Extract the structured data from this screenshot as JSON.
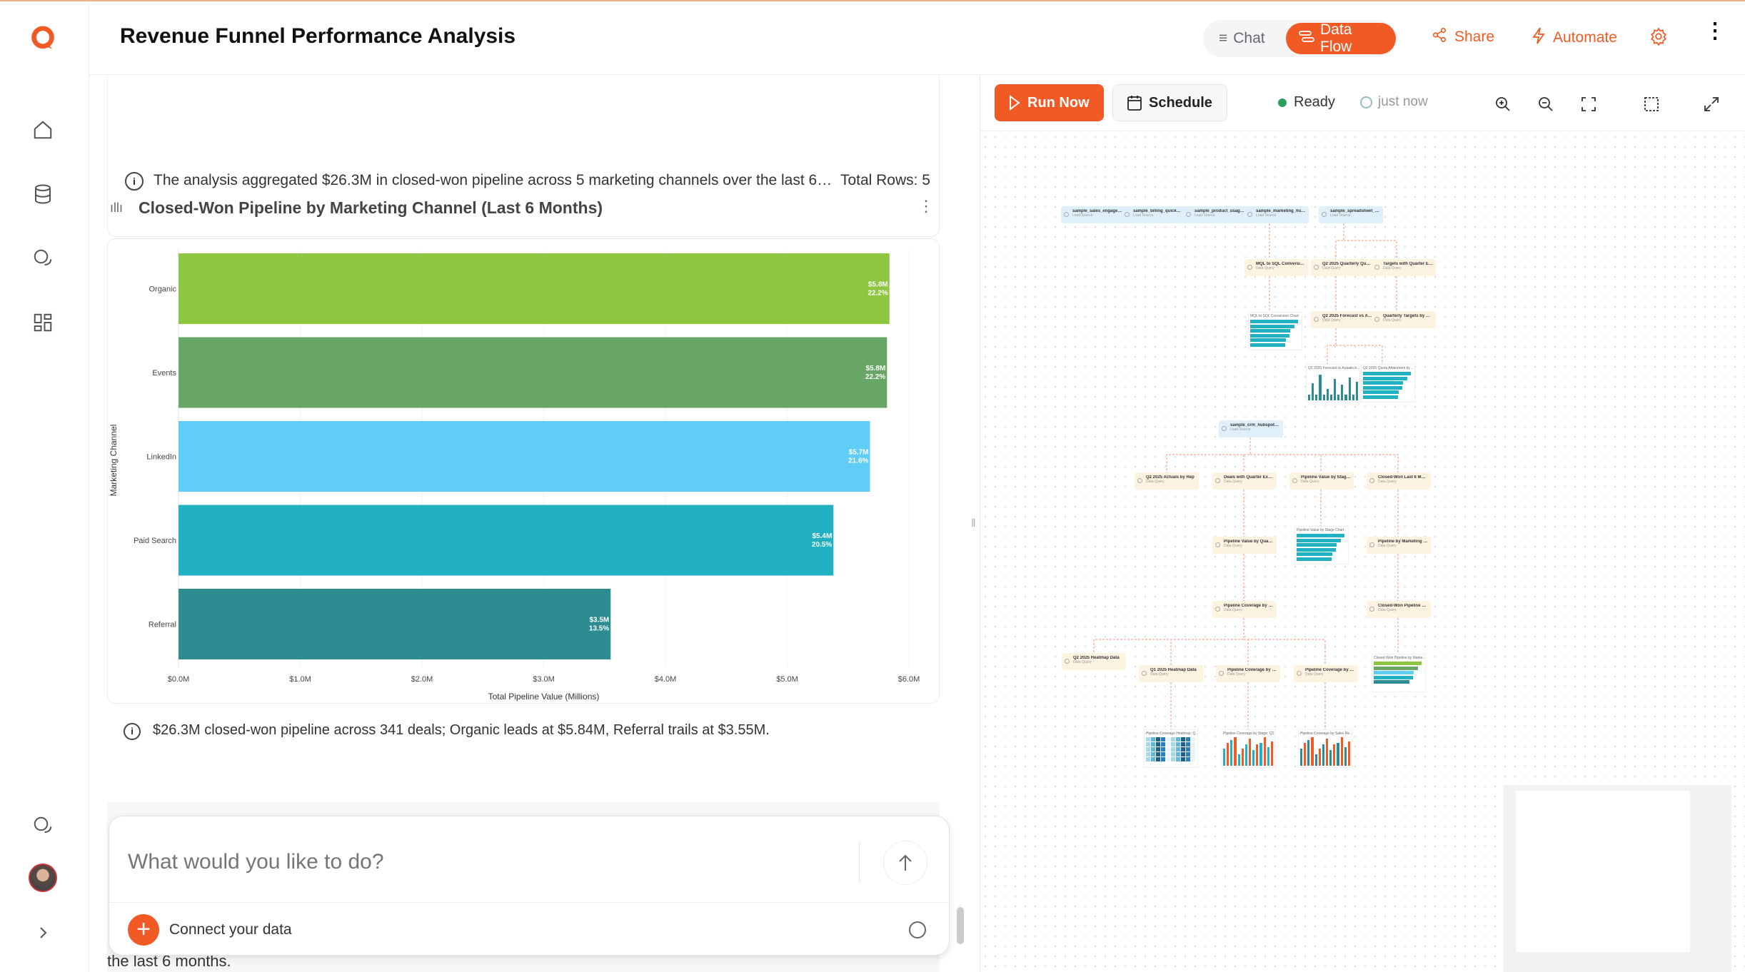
{
  "header": {
    "title": "Revenue Funnel Performance Analysis",
    "chat_label": "Chat",
    "dataflow_label": "Data Flow",
    "share_label": "Share",
    "automate_label": "Automate"
  },
  "summary": {
    "text": "The analysis aggregated $26.3M in closed-won pipeline across 5 marketing channels over the last 6…",
    "total_rows": "Total Rows: 5"
  },
  "chart_card": {
    "title": "Closed-Won Pipeline by Marketing Channel (Last 6 Months)"
  },
  "insight": "$26.3M closed-won pipeline across 341 deals; Organic leads at $5.84M, Referral trails at $3.55M.",
  "chart_data": {
    "type": "bar",
    "orientation": "horizontal",
    "title": "Closed-Won Pipeline by Marketing Channel (Last 6 Months)",
    "xlabel": "Total Pipeline Value (Millions)",
    "ylabel": "Marketing Channel",
    "xlim": [
      0,
      6
    ],
    "xticks": [
      "$0.0M",
      "$1.0M",
      "$2.0M",
      "$3.0M",
      "$4.0M",
      "$5.0M",
      "$6.0M"
    ],
    "categories": [
      "Organic",
      "Events",
      "LinkedIn",
      "Paid Search",
      "Referral"
    ],
    "values": [
      5.84,
      5.82,
      5.68,
      5.38,
      3.55
    ],
    "labels": [
      [
        "$5.8M",
        "22.2%"
      ],
      [
        "$5.8M",
        "22.2%"
      ],
      [
        "$5.7M",
        "21.6%"
      ],
      [
        "$5.4M",
        "20.5%"
      ],
      [
        "$3.5M",
        "13.5%"
      ]
    ],
    "colors": [
      "#8dc63f",
      "#68a665",
      "#5fcdf5",
      "#22b1c3",
      "#2c8c92"
    ],
    "grid": true
  },
  "composer": {
    "placeholder": "What would you like to do?",
    "connect_label": "Connect your data",
    "trailing_text": "the last 6 months."
  },
  "toolbar": {
    "run_label": "Run Now",
    "schedule_label": "Schedule",
    "status": "Ready",
    "time": "just now"
  },
  "flow": {
    "sources": [
      "sample_sales_engagem...",
      "sample_billing_quickbo...",
      "sample_product_usage...",
      "sample_marketing_hub...",
      "sample_spreadsheet_q...",
      "sample_crm_hubspot_d..."
    ],
    "source_sub": "Load Source",
    "query_sub": "Data Query",
    "queries": [
      "MQL to SQL Conversion ...",
      "Q2 2025 Quarterly Quot...",
      "Targets with Quarter Ext...",
      "Q2 2025 Forecast vs Ac...",
      "Quarterly Targets by Rep",
      "Q2 2025 Actuals by Rep",
      "Deals with Quarter Extra...",
      "Pipeline Value by Stage ...",
      "Closed-Won Last 6 Mon...",
      "Pipeline Value by Quart...",
      "Pipeline by Marketing C...",
      "Pipeline Coverage by St...",
      "Closed-Won Pipeline by ...",
      "Q2 2025 Heatmap Data",
      "Q1 2025 Heatmap Data",
      "Pipeline Coverage by St...",
      "Pipeline Coverage by Re..."
    ],
    "charts": [
      "MQL to SQL Conversion Chart",
      "Q2 2025 Forecast vs Actuals b...",
      "Q2 2025 Quota Attainment by ...",
      "Pipeline Value by Stage Chart",
      "Closed-Won Pipeline by Marke...",
      "Pipeline Coverage Heatmap: Q...",
      "Pipeline Coverage by Stage: Q1...",
      "Pipeline Coverage by Sales Re..."
    ]
  },
  "colors": {
    "accent": "#f15a24",
    "ready": "#2e9e5b"
  }
}
